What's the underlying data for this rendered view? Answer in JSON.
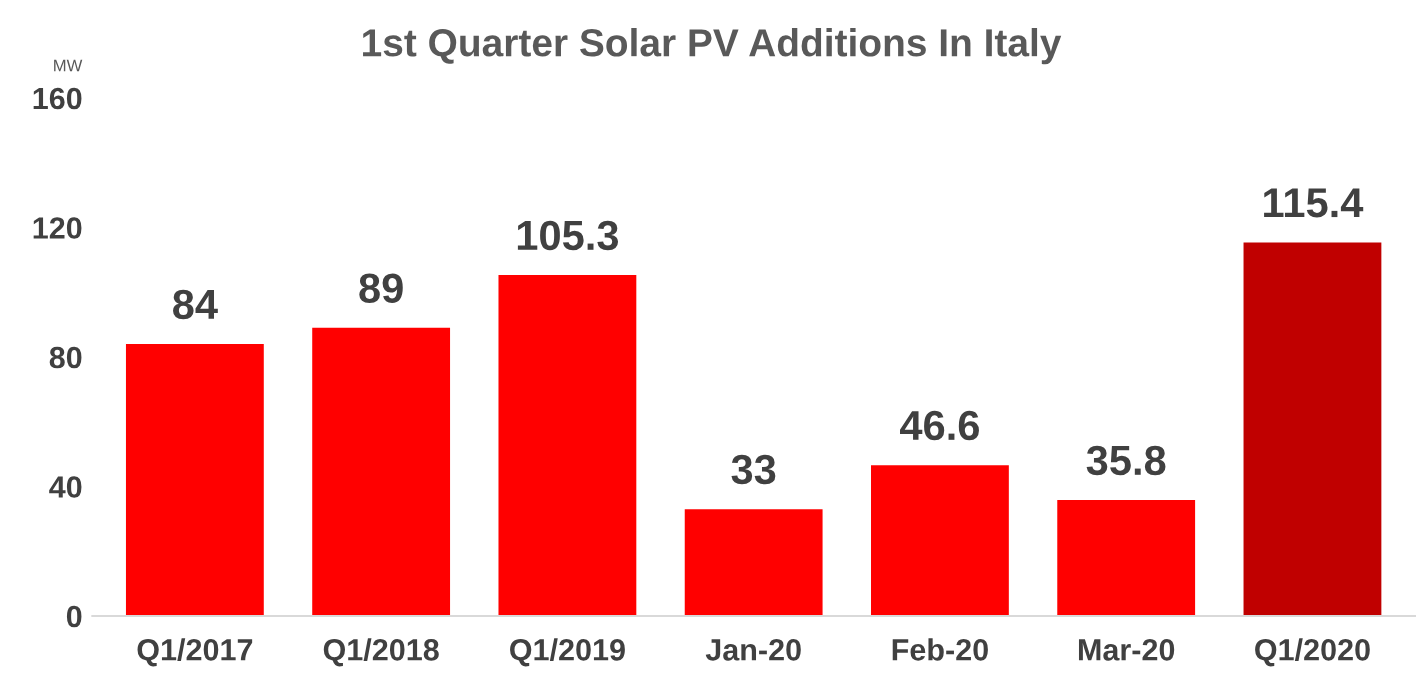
{
  "chart_data": {
    "type": "bar",
    "title": "1st Quarter Solar PV Additions In Italy",
    "ylabel": "MW",
    "categories": [
      "Q1/2017",
      "Q1/2018",
      "Q1/2019",
      "Jan-20",
      "Feb-20",
      "Mar-20",
      "Q1/2020"
    ],
    "values": [
      84,
      89,
      105.3,
      33,
      46.6,
      35.8,
      115.4
    ],
    "colors": [
      "#ff0000",
      "#ff0000",
      "#ff0000",
      "#ff0000",
      "#ff0000",
      "#ff0000",
      "#c00000"
    ],
    "value_labels": [
      "84",
      "89",
      "105.3",
      "33",
      "46.6",
      "35.8",
      "115.4"
    ],
    "ylim": [
      0,
      160
    ],
    "yticks": [
      0,
      40,
      80,
      120,
      160
    ],
    "grid": false,
    "legend": false
  }
}
